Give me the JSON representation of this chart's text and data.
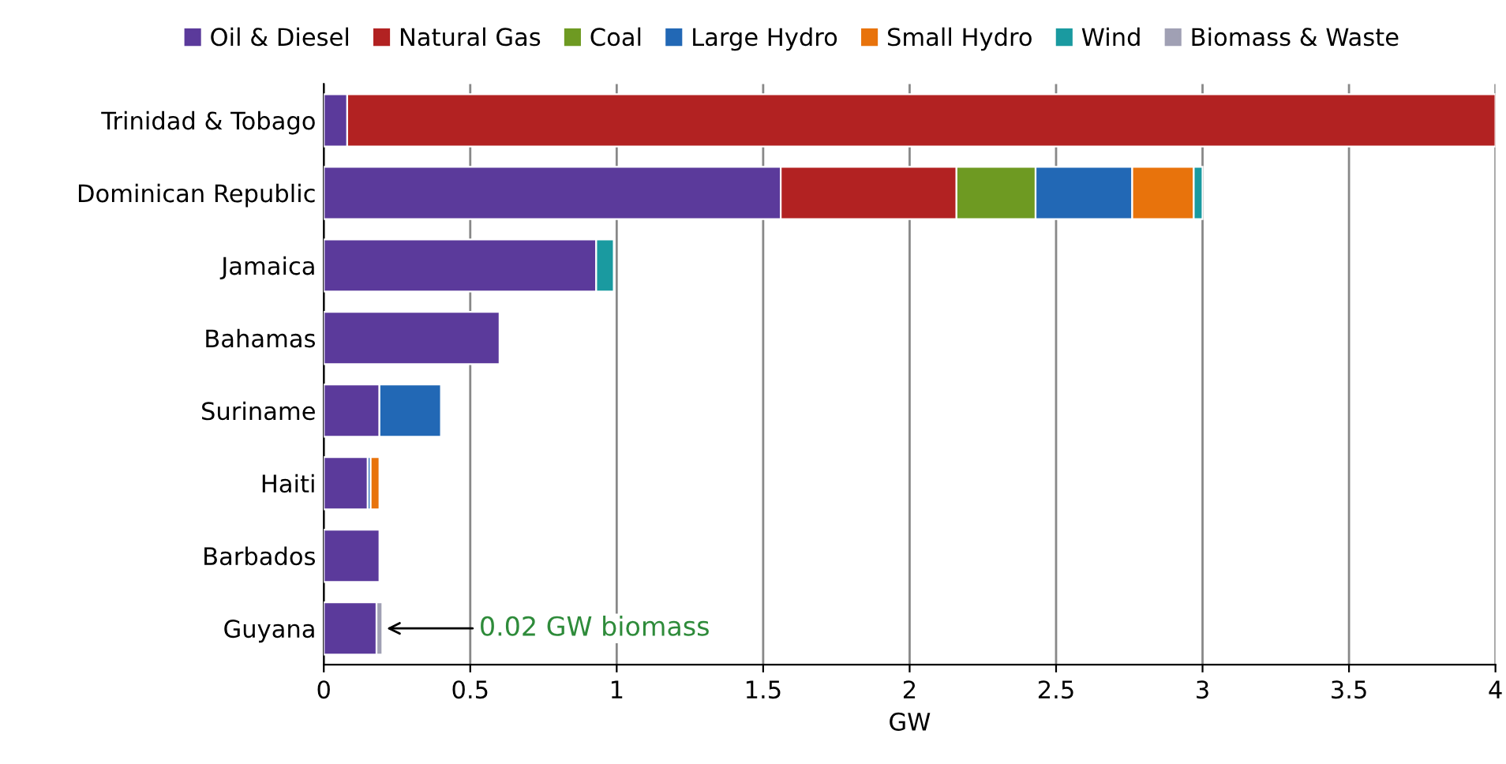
{
  "chart_data": {
    "type": "bar",
    "orientation": "horizontal",
    "stacked": true,
    "xlabel": "GW",
    "categories": [
      "Trinidad & Tobago",
      "Dominican Republic",
      "Jamaica",
      "Bahamas",
      "Suriname",
      "Haiti",
      "Barbados",
      "Guyana"
    ],
    "series": [
      {
        "name": "Oil & Diesel",
        "color": "#5b3a9b",
        "values": [
          0.08,
          1.56,
          0.93,
          0.6,
          0.19,
          0.15,
          0.19,
          0.18
        ]
      },
      {
        "name": "Natural Gas",
        "color": "#b22222",
        "values": [
          3.92,
          0.6,
          null,
          null,
          null,
          null,
          null,
          null
        ]
      },
      {
        "name": "Coal",
        "color": "#6e9a22",
        "values": [
          null,
          0.27,
          null,
          null,
          null,
          null,
          null,
          null
        ]
      },
      {
        "name": "Large Hydro",
        "color": "#2268b5",
        "values": [
          null,
          0.33,
          null,
          null,
          0.21,
          0.01,
          null,
          null
        ]
      },
      {
        "name": "Small Hydro",
        "color": "#e8730c",
        "values": [
          null,
          0.21,
          null,
          null,
          null,
          0.03,
          null,
          null
        ]
      },
      {
        "name": "Wind",
        "color": "#1a9aa0",
        "values": [
          null,
          0.03,
          0.06,
          null,
          null,
          null,
          null,
          null
        ]
      },
      {
        "name": "Biomass & Waste",
        "color": "#a0a0b4",
        "values": [
          null,
          null,
          null,
          null,
          null,
          null,
          null,
          0.02
        ]
      }
    ],
    "xlim": [
      0,
      4
    ],
    "xticks": [
      0,
      0.5,
      1,
      1.5,
      2,
      2.5,
      3,
      3.5,
      4
    ],
    "grid": "x",
    "legend": "top",
    "annotations": [
      {
        "text": "0.02 GW biomass",
        "x": 0.2,
        "y": "Guyana"
      }
    ]
  }
}
